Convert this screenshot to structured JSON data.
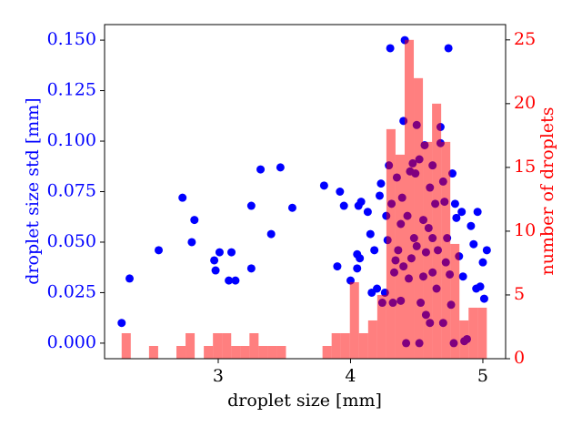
{
  "chart_data": [
    {
      "type": "scatter",
      "color": "#0000ff",
      "xlabel": "droplet size [mm]",
      "ylabel": "droplet size std [mm]",
      "xlim": [
        2.141,
        5.172
      ],
      "xticks": [
        3,
        4,
        5
      ],
      "ylim": [
        -0.0077,
        0.1577
      ],
      "yticks": [
        {
          "value": 0,
          "label": "0.000"
        },
        {
          "value": 0.025,
          "label": "0.025"
        },
        {
          "value": 0.05,
          "label": "0.050"
        },
        {
          "value": 0.075,
          "label": "0.075"
        },
        {
          "value": 0.1,
          "label": "0.100"
        },
        {
          "value": 0.125,
          "label": "0.125"
        },
        {
          "value": 0.15,
          "label": "0.150"
        }
      ],
      "x": [
        2.27,
        2.33,
        2.55,
        2.73,
        2.8,
        2.82,
        2.97,
        2.98,
        3.01,
        3.08,
        3.1,
        3.13,
        3.25,
        3.25,
        3.32,
        3.4,
        3.47,
        3.56,
        3.8,
        3.9,
        3.92,
        3.95,
        4.0,
        4.05,
        4.06,
        4.08,
        4.05,
        4.07,
        4.13,
        4.15,
        4.16,
        4.18,
        4.2,
        4.22,
        4.23,
        4.3,
        4.41,
        4.74,
        4.29,
        4.33,
        4.38,
        4.45,
        4.47,
        4.56,
        4.64,
        4.68,
        4.7,
        4.77,
        4.79,
        4.84,
        4.91,
        4.93,
        4.96,
        4.95,
        4.98,
        5.0,
        5.01,
        5.03,
        4.82,
        4.85,
        4.4,
        4.49,
        4.52,
        4.55,
        4.6,
        4.62,
        4.66,
        4.71,
        4.73,
        4.75,
        4.48,
        4.5,
        4.44,
        4.46,
        4.36,
        4.34,
        4.28,
        4.27,
        4.31,
        4.26,
        4.24,
        4.42,
        4.53,
        4.57,
        4.62,
        4.7,
        4.78,
        4.86,
        4.88,
        4.52,
        4.4,
        4.57,
        4.59,
        4.43,
        4.39,
        4.35,
        4.5,
        4.68,
        4.62,
        4.6,
        4.32,
        4.38,
        4.55,
        4.65,
        4.8,
        4.76,
        4.72
      ],
      "values": [
        0.01,
        0.032,
        0.046,
        0.072,
        0.05,
        0.061,
        0.041,
        0.036,
        0.045,
        0.031,
        0.045,
        0.031,
        0.037,
        0.068,
        0.086,
        0.054,
        0.087,
        0.067,
        0.078,
        0.038,
        0.075,
        0.068,
        0.031,
        0.037,
        0.068,
        0.07,
        0.044,
        0.042,
        0.065,
        0.054,
        0.025,
        0.046,
        0.027,
        0.073,
        0.079,
        0.146,
        0.15,
        0.146,
        0.088,
        0.035,
        0.059,
        0.085,
        0.089,
        0.098,
        0.069,
        0.099,
        0.08,
        0.084,
        0.069,
        0.065,
        0.058,
        0.049,
        0.065,
        0.027,
        0.028,
        0.04,
        0.022,
        0.046,
        0.043,
        0.033,
        0.11,
        0.084,
        0.091,
        0.061,
        0.077,
        0.052,
        0.046,
        0.07,
        0.052,
        0.034,
        0.052,
        0.048,
        0.032,
        0.042,
        0.046,
        0.041,
        0.051,
        0.063,
        0.069,
        0.025,
        0.02,
        0.0,
        0.02,
        0.014,
        0.035,
        0.01,
        0.0,
        0.001,
        0.002,
        0.0,
        0.038,
        0.045,
        0.057,
        0.063,
        0.072,
        0.082,
        0.108,
        0.107,
        0.088,
        0.01,
        0.02,
        0.021,
        0.033,
        0.027,
        0.062,
        0.019,
        0.04
      ]
    },
    {
      "type": "histogram",
      "color": "#ff0000",
      "alpha": 0.5,
      "axis": "y2",
      "ylabel": "number of droplets",
      "y2lim": [
        0,
        26.2
      ],
      "y2ticks": [
        0,
        5,
        10,
        15,
        20,
        25
      ],
      "bins": [
        2.27,
        2.339,
        2.408,
        2.477,
        2.546,
        2.615,
        2.684,
        2.753,
        2.822,
        2.891,
        2.96,
        3.029,
        3.098,
        3.167,
        3.236,
        3.305,
        3.374,
        3.443,
        3.512,
        3.581,
        3.65,
        3.719,
        3.788,
        3.857,
        3.926,
        3.995,
        4.064,
        4.133,
        4.202,
        4.271,
        4.34,
        4.409,
        4.478,
        4.547,
        4.616,
        4.685,
        4.754,
        4.823,
        4.892,
        4.961,
        5.03
      ],
      "values": [
        2,
        0,
        0,
        1,
        0,
        0,
        1,
        2,
        0,
        1,
        2,
        2,
        1,
        1,
        2,
        1,
        1,
        1,
        0,
        0,
        0,
        0,
        1,
        2,
        2,
        6,
        2,
        3,
        5,
        18,
        16,
        25,
        22,
        17,
        20,
        17,
        9,
        3,
        4,
        4
      ]
    }
  ]
}
